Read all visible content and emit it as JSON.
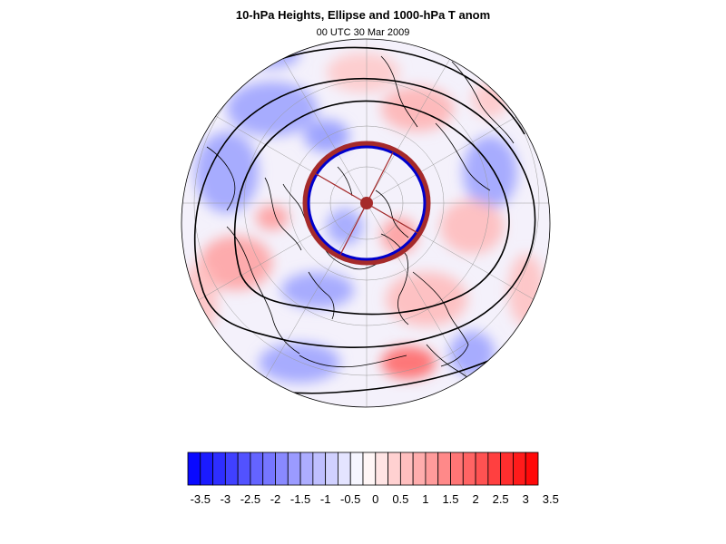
{
  "header": {
    "title": "10-hPa Heights, Ellipse and 1000-hPa T anom",
    "subtitle": "00 UTC 30 Mar 2009"
  },
  "map": {
    "projection": "polar-stereographic-north",
    "field": "1000-hPa temperature anomaly",
    "overlay": [
      "10-hPa height contours",
      "vortex ellipse"
    ],
    "ellipse_color": "#a52a2a",
    "ellipse_edge_color": "#0000cc"
  },
  "colorbar": {
    "tick_labels": [
      "-3.5",
      "-3",
      "-2.5",
      "-2",
      "-1.5",
      "-1",
      "-0.5",
      "0",
      "0.5",
      "1",
      "1.5",
      "2",
      "2.5",
      "3",
      "3.5"
    ],
    "levels": [
      -3.5,
      -3.25,
      -3,
      -2.75,
      -2.5,
      -2.25,
      -2,
      -1.75,
      -1.5,
      -1.25,
      -1,
      -0.75,
      -0.5,
      -0.25,
      0,
      0.25,
      0.5,
      0.75,
      1,
      1.25,
      1.5,
      1.75,
      2,
      2.25,
      2.5,
      2.75,
      3,
      3.25,
      3.5
    ],
    "min_color": "#0000ff",
    "mid_color": "#ffffff",
    "max_color": "#ff0000"
  }
}
